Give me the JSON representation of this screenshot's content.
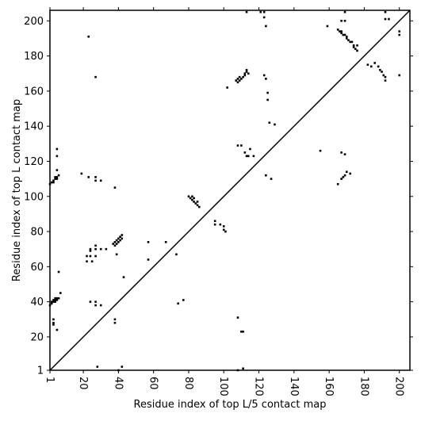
{
  "chart_data": {
    "type": "scatter",
    "xlabel": "Residue index of top L/5 contact map",
    "ylabel": "Residue index of top L contact map",
    "xlim": [
      1,
      206
    ],
    "ylim": [
      1,
      206
    ],
    "xticks": [
      1,
      20,
      40,
      60,
      80,
      100,
      120,
      140,
      160,
      180,
      200
    ],
    "yticks": [
      1,
      20,
      40,
      60,
      80,
      100,
      120,
      140,
      160,
      180,
      200
    ],
    "color": "#000000",
    "x": [
      1,
      2,
      2,
      3,
      3,
      4,
      4,
      5,
      5,
      6,
      4,
      1,
      2,
      3,
      3,
      4,
      4,
      5,
      5,
      6,
      5,
      5,
      5,
      6,
      7,
      3,
      3,
      3,
      5,
      23,
      27,
      19,
      23,
      27,
      27,
      30,
      38,
      22,
      22,
      25,
      24,
      24,
      24,
      27,
      27,
      27,
      30,
      33,
      24,
      27,
      27,
      30,
      38,
      38,
      37,
      38,
      38,
      39,
      39,
      40,
      40,
      41,
      41,
      42,
      42,
      39,
      43,
      57,
      57,
      67,
      73,
      77,
      74,
      80,
      81,
      82,
      82,
      83,
      83,
      84,
      85,
      85,
      86,
      95,
      95,
      98,
      100,
      100,
      101,
      102,
      107,
      108,
      108,
      109,
      109,
      110,
      111,
      112,
      112,
      113,
      113,
      114,
      108,
      110,
      112,
      113,
      114,
      115,
      117,
      113,
      121,
      123,
      123,
      124,
      123,
      124,
      125,
      125,
      126,
      129,
      124,
      127,
      155,
      159,
      165,
      166,
      167,
      167,
      168,
      169,
      170,
      170,
      171,
      172,
      173,
      174,
      174,
      175,
      176,
      176,
      167,
      169,
      169,
      167,
      169,
      165,
      167,
      168,
      169,
      170,
      172,
      182,
      184,
      186,
      188,
      189,
      190,
      191,
      192,
      192,
      192,
      192,
      194,
      200,
      200,
      200,
      108,
      110,
      111,
      108,
      111,
      28,
      40,
      42
    ],
    "values": [
      38,
      39,
      40,
      40,
      41,
      40,
      41,
      41,
      42,
      42,
      42,
      107,
      108,
      108,
      109,
      110,
      111,
      110,
      111,
      112,
      115,
      123,
      127,
      57,
      45,
      30,
      28,
      27,
      24,
      191,
      168,
      113,
      111,
      111,
      109,
      109,
      105,
      66,
      63,
      63,
      66,
      69,
      70,
      66,
      70,
      72,
      70,
      70,
      40,
      40,
      38,
      38,
      30,
      28,
      73,
      72,
      74,
      73,
      75,
      74,
      76,
      75,
      77,
      76,
      78,
      67,
      54,
      74,
      64,
      74,
      67,
      41,
      39,
      100,
      99,
      98,
      100,
      97,
      99,
      96,
      95,
      97,
      94,
      86,
      84,
      84,
      83,
      81,
      80,
      162,
      166,
      165,
      167,
      166,
      168,
      167,
      168,
      169,
      170,
      171,
      172,
      170,
      129,
      129,
      125,
      123,
      123,
      127,
      123,
      205,
      205,
      205,
      202,
      197,
      169,
      167,
      159,
      155,
      142,
      141,
      112,
      110,
      126,
      197,
      195,
      194,
      194,
      193,
      192,
      192,
      191,
      190,
      189,
      188,
      188,
      186,
      185,
      184,
      183,
      186,
      200,
      200,
      205,
      125,
      124,
      107,
      110,
      111,
      112,
      114,
      113,
      175,
      174,
      176,
      174,
      172,
      171,
      169,
      168,
      166,
      205,
      201,
      201,
      194,
      192,
      169,
      31,
      23,
      23,
      1,
      2,
      3,
      1,
      3
    ]
  }
}
